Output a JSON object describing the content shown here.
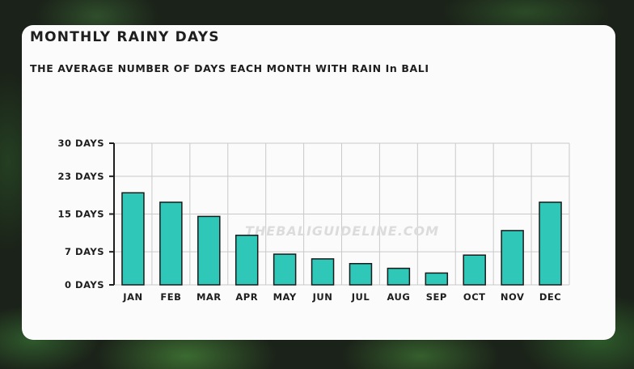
{
  "header": {
    "title": "MONTHLY RAINY DAYS",
    "subtitle": "THE AVERAGE NUMBER OF DAYS EACH MONTH WITH RAIN In BALI"
  },
  "watermark": "THEBALIGUIDELINE.COM",
  "colors": {
    "bar_fill": "#2ec7b8",
    "bar_stroke": "#1a1a1a",
    "grid": "#c9c9c9",
    "card": "#fbfbfb"
  },
  "chart_data": {
    "type": "bar",
    "title": "MONTHLY RAINY DAYS",
    "subtitle": "THE AVERAGE NUMBER OF DAYS EACH MONTH WITH RAIN In BALI",
    "xlabel": "",
    "ylabel": "",
    "categories": [
      "JAN",
      "FEB",
      "MAR",
      "APR",
      "MAY",
      "JUN",
      "JUL",
      "AUG",
      "SEP",
      "OCT",
      "NOV",
      "DEC"
    ],
    "values": [
      19.5,
      17.5,
      14.5,
      10.5,
      6.5,
      5.5,
      4.5,
      3.5,
      2.5,
      6.3,
      11.5,
      17.5
    ],
    "ylim": [
      0,
      30
    ],
    "yticks": [
      0,
      7,
      15,
      23,
      30
    ],
    "ytick_labels": [
      "0 DAYS",
      "7 DAYS",
      "15 DAYS",
      "23 DAYS",
      "30 DAYS"
    ],
    "grid": true,
    "legend": "none"
  }
}
